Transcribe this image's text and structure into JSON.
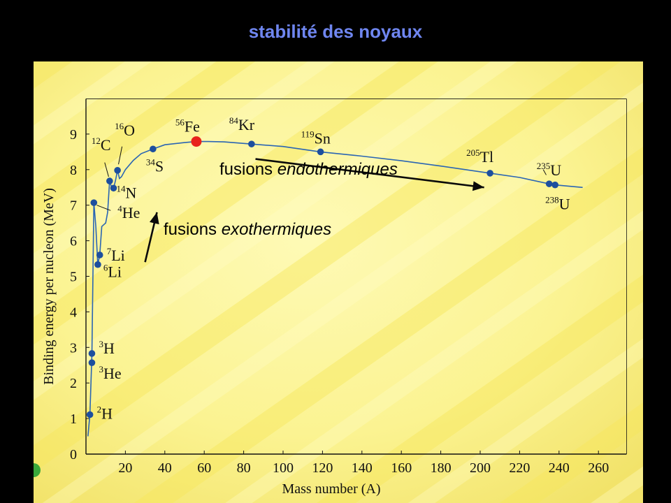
{
  "slide": {
    "title": "stabilité des noyaux"
  },
  "colors": {
    "background": "#000000",
    "title": "#6f86f0",
    "paper": "#fbf596",
    "curve": "#2a65b3",
    "point": "#1d4f9e",
    "iron_point": "#e8231b",
    "annotation_arrow": "#0a0a0a"
  },
  "chart_data": {
    "type": "line",
    "title": "",
    "xlabel": "Mass number (A)",
    "ylabel": "Binding energy per nucleon (MeV)",
    "xlim": [
      0,
      270
    ],
    "ylim": [
      0,
      9.5
    ],
    "xticks": [
      "20",
      "40",
      "60",
      "80",
      "100",
      "120",
      "140",
      "160",
      "180",
      "200",
      "220",
      "240",
      "260"
    ],
    "yticks": [
      "0",
      "1",
      "2",
      "3",
      "4",
      "5",
      "6",
      "7",
      "8",
      "9"
    ],
    "grid": false,
    "curve": [
      [
        1,
        0.5
      ],
      [
        2,
        1.1
      ],
      [
        3,
        2.8
      ],
      [
        4,
        7.07
      ],
      [
        5,
        6.4
      ],
      [
        6,
        5.33
      ],
      [
        7,
        5.6
      ],
      [
        8,
        6.4
      ],
      [
        9,
        6.45
      ],
      [
        10,
        6.5
      ],
      [
        11,
        6.8
      ],
      [
        12,
        7.68
      ],
      [
        13,
        7.5
      ],
      [
        14,
        7.48
      ],
      [
        15,
        7.7
      ],
      [
        16,
        7.98
      ],
      [
        17,
        7.75
      ],
      [
        18,
        7.8
      ],
      [
        20,
        8.0
      ],
      [
        24,
        8.26
      ],
      [
        28,
        8.45
      ],
      [
        34,
        8.58
      ],
      [
        40,
        8.7
      ],
      [
        50,
        8.76
      ],
      [
        56,
        8.79
      ],
      [
        62,
        8.79
      ],
      [
        70,
        8.78
      ],
      [
        84,
        8.72
      ],
      [
        100,
        8.65
      ],
      [
        119,
        8.5
      ],
      [
        140,
        8.38
      ],
      [
        160,
        8.25
      ],
      [
        180,
        8.1
      ],
      [
        205,
        7.9
      ],
      [
        220,
        7.78
      ],
      [
        235,
        7.6
      ],
      [
        238,
        7.57
      ],
      [
        252,
        7.5
      ]
    ],
    "points": [
      {
        "label": "2H",
        "mass": "2",
        "symbol": "H",
        "A": 2,
        "E": 1.11
      },
      {
        "label": "3H",
        "mass": "3",
        "symbol": "H",
        "A": 3,
        "E": 2.83
      },
      {
        "label": "3He",
        "mass": "3",
        "symbol": "He",
        "A": 3,
        "E": 2.57
      },
      {
        "label": "4He",
        "mass": "4",
        "symbol": "He",
        "A": 4,
        "E": 7.07
      },
      {
        "label": "6Li",
        "mass": "6",
        "symbol": "Li",
        "A": 6,
        "E": 5.33
      },
      {
        "label": "7Li",
        "mass": "7",
        "symbol": "Li",
        "A": 7,
        "E": 5.6
      },
      {
        "label": "12C",
        "mass": "12",
        "symbol": "C",
        "A": 12,
        "E": 7.68
      },
      {
        "label": "14N",
        "mass": "14",
        "symbol": "N",
        "A": 14,
        "E": 7.48
      },
      {
        "label": "16O",
        "mass": "16",
        "symbol": "O",
        "A": 16,
        "E": 7.98
      },
      {
        "label": "34S",
        "mass": "34",
        "symbol": "S",
        "A": 34,
        "E": 8.58
      },
      {
        "label": "56Fe",
        "mass": "56",
        "symbol": "Fe",
        "A": 56,
        "E": 8.79,
        "highlight": true
      },
      {
        "label": "84Kr",
        "mass": "84",
        "symbol": "Kr",
        "A": 84,
        "E": 8.72
      },
      {
        "label": "119Sn",
        "mass": "119",
        "symbol": "Sn",
        "A": 119,
        "E": 8.5
      },
      {
        "label": "205Tl",
        "mass": "205",
        "symbol": "Tl",
        "A": 205,
        "E": 7.9
      },
      {
        "label": "235U",
        "mass": "235",
        "symbol": "U",
        "A": 235,
        "E": 7.6
      },
      {
        "label": "238U",
        "mass": "238",
        "symbol": "U",
        "A": 238,
        "E": 7.57
      }
    ],
    "annotations": [
      {
        "text_plain": "fusions ",
        "text_em": "endothermiques",
        "from": [
          86,
          8.3
        ],
        "to": [
          202,
          7.5
        ]
      },
      {
        "text_plain": "fusions ",
        "text_em": "exothermiques",
        "from": [
          30,
          5.4
        ],
        "to": [
          36,
          6.8
        ]
      }
    ]
  }
}
